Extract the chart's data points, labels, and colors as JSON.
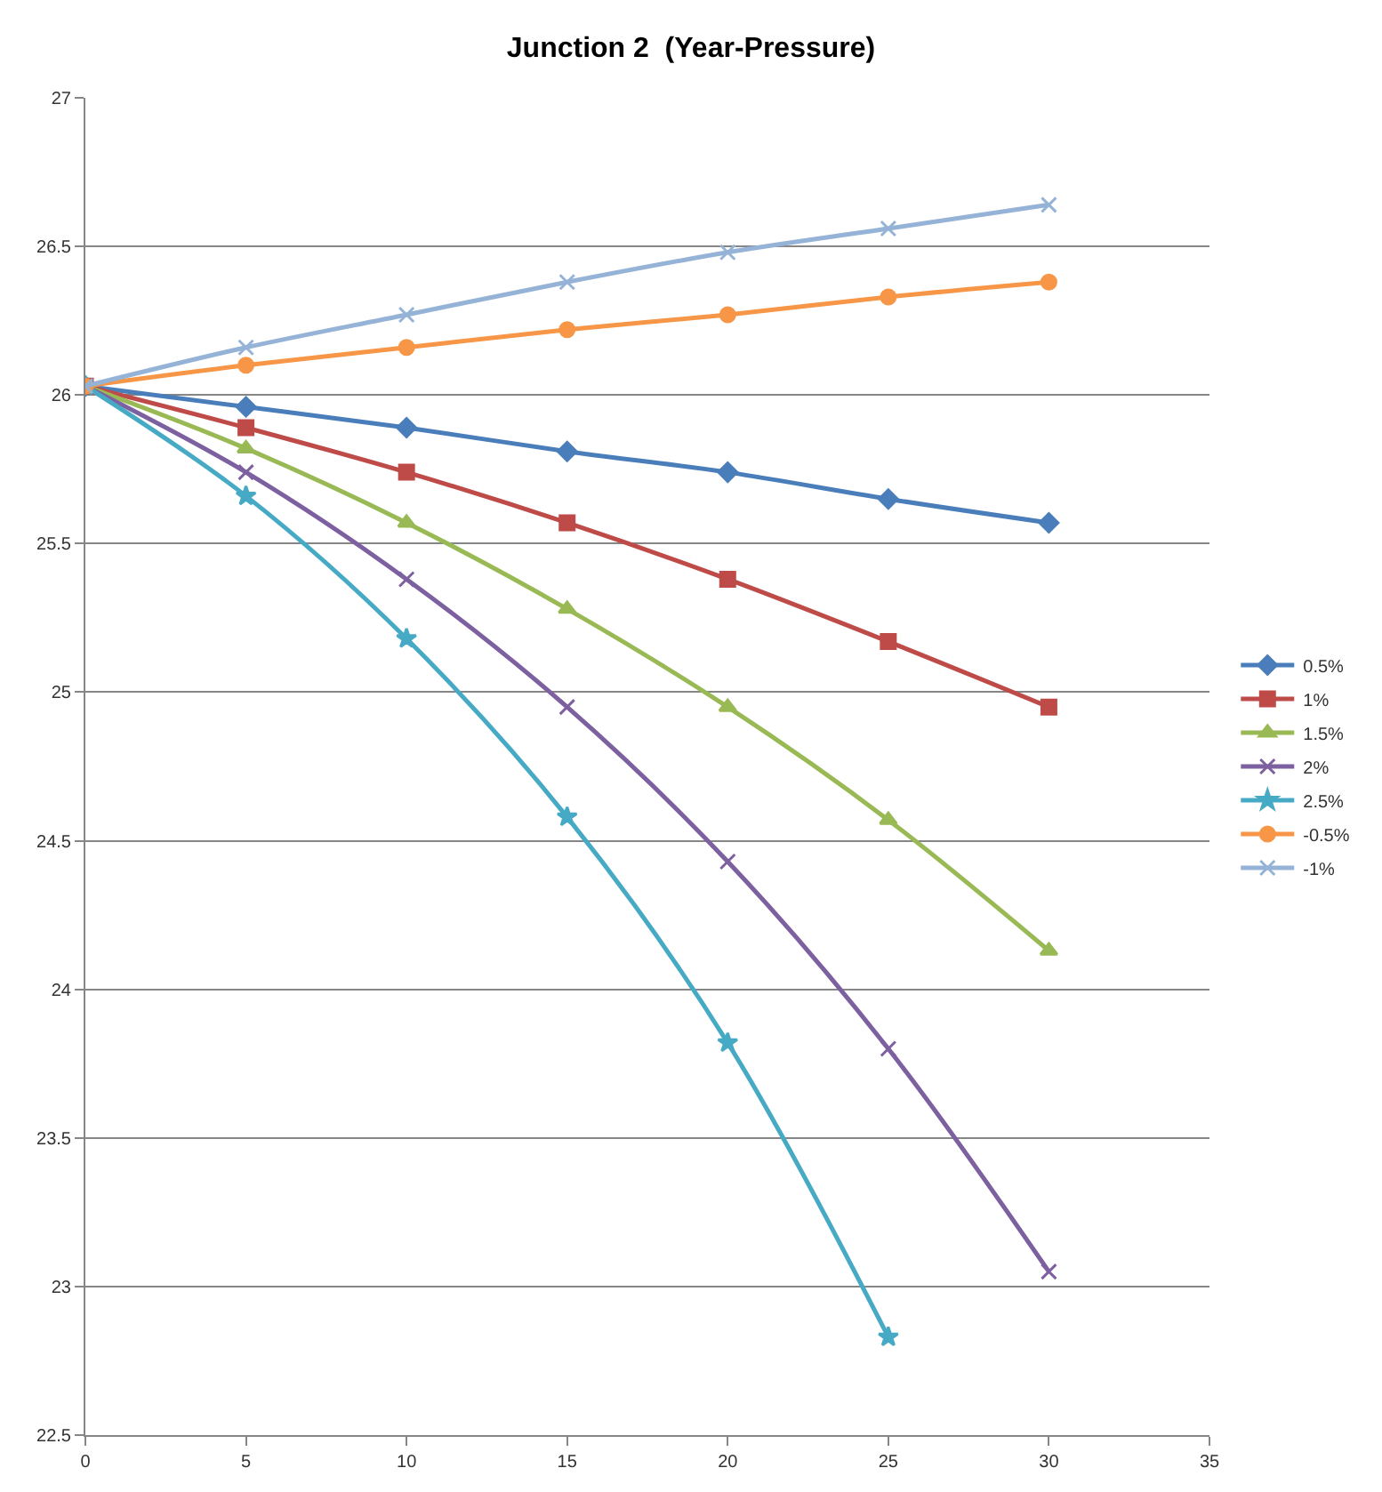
{
  "chart_data": {
    "type": "line",
    "title": "Junction 2  (Year-Pressure)",
    "x": [
      0,
      5,
      10,
      15,
      20,
      25,
      30
    ],
    "series": [
      {
        "name": "0.5%",
        "color": "#4a7ebb",
        "marker": "diamond",
        "values": [
          26.03,
          25.96,
          25.89,
          25.81,
          25.74,
          25.65,
          25.57
        ]
      },
      {
        "name": "1%",
        "color": "#be4b48",
        "marker": "square",
        "values": [
          26.03,
          25.89,
          25.74,
          25.57,
          25.38,
          25.17,
          24.95
        ]
      },
      {
        "name": "1.5%",
        "color": "#98b954",
        "marker": "triangle",
        "values": [
          26.03,
          25.82,
          25.57,
          25.28,
          24.95,
          24.57,
          24.13
        ]
      },
      {
        "name": "2%",
        "color": "#7d60a0",
        "marker": "cross",
        "values": [
          26.03,
          25.74,
          25.38,
          24.95,
          24.43,
          23.8,
          23.05
        ]
      },
      {
        "name": "2.5%",
        "color": "#46aac5",
        "marker": "star",
        "values": [
          26.03,
          25.66,
          25.18,
          24.58,
          23.82,
          22.83,
          null
        ]
      },
      {
        "name": "-0.5%",
        "color": "#f79646",
        "marker": "circle",
        "values": [
          26.03,
          26.1,
          26.16,
          26.22,
          26.27,
          26.33,
          26.38
        ]
      },
      {
        "name": "-1%",
        "color": "#95b3d7",
        "marker": "cross",
        "values": [
          26.03,
          26.16,
          26.27,
          26.38,
          26.48,
          26.56,
          26.64
        ]
      }
    ],
    "xlim": [
      0,
      35
    ],
    "xticks": [
      0,
      5,
      10,
      15,
      20,
      25,
      30,
      35
    ],
    "ylim": [
      22.5,
      27
    ],
    "yticks": [
      22.5,
      23,
      23.5,
      24,
      24.5,
      25,
      25.5,
      26,
      26.5,
      27
    ],
    "grid": "y",
    "legend": "right",
    "line_style": "solid"
  }
}
